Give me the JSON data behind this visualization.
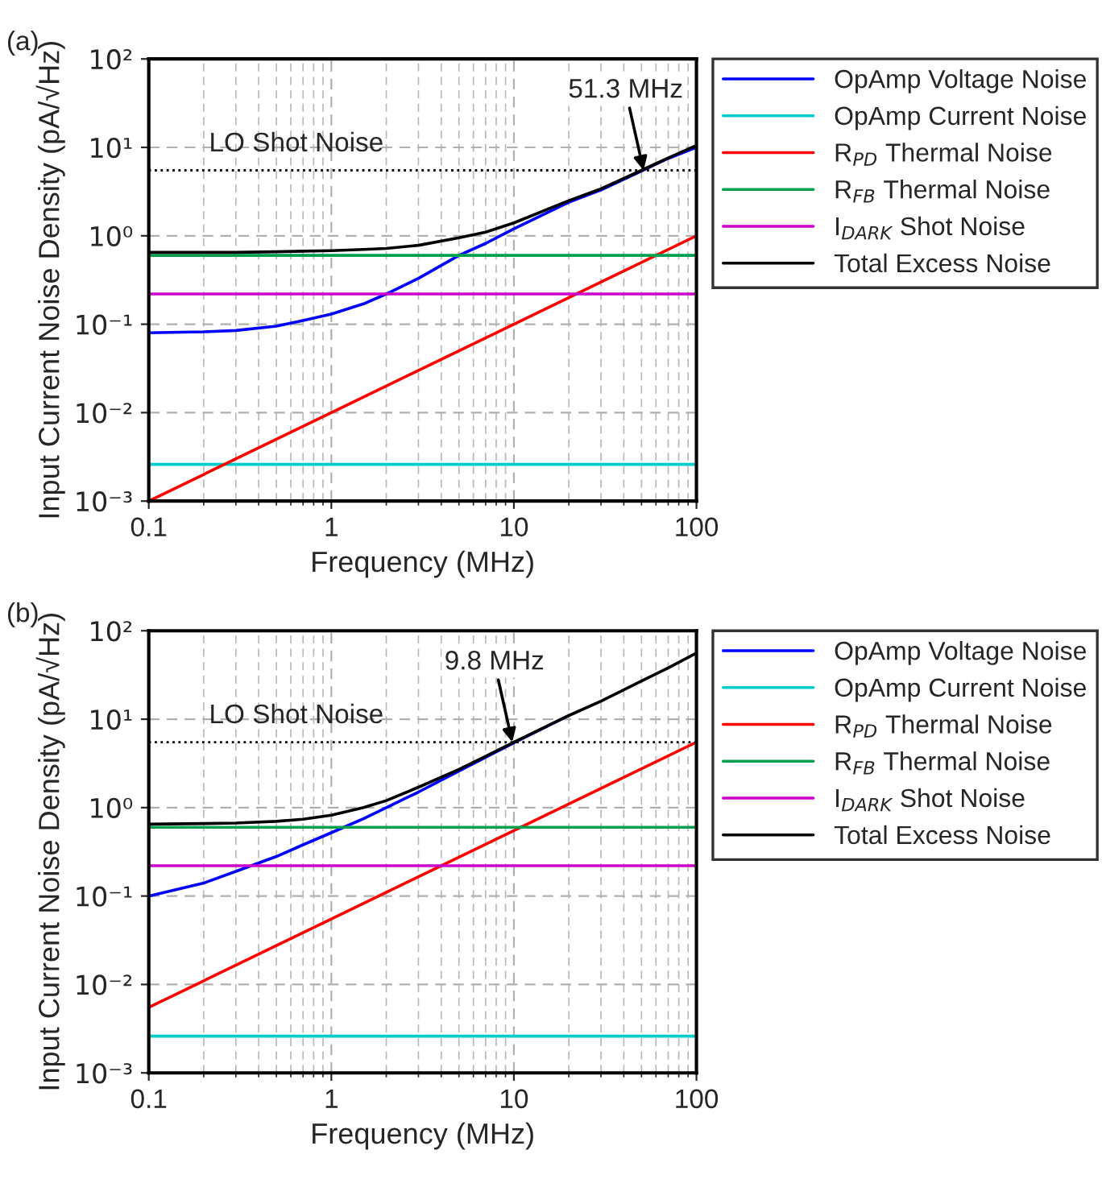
{
  "chart_data": [
    {
      "type": "line",
      "title": "(a)",
      "xlabel": "Frequency (MHz)",
      "ylabel": "Input Current Noise Density (pA/√Hz)",
      "log": "xy",
      "grid": true,
      "legend": "right",
      "line_style": "solid",
      "marker": "none",
      "xlim": [
        0.1,
        100
      ],
      "xticks": [
        0.1,
        1,
        10,
        100
      ],
      "ylim": [
        0.001,
        100
      ],
      "yticks": [
        {
          "value": 0.001,
          "label": "10⁻³"
        },
        {
          "value": 0.01,
          "label": "10⁻²"
        },
        {
          "value": 0.1,
          "label": "10⁻¹"
        },
        {
          "value": 1,
          "label": "10⁰"
        },
        {
          "value": 10,
          "label": "10¹"
        },
        {
          "value": 100,
          "label": "10²"
        }
      ],
      "series": [
        {
          "name": "OpAmp Voltage Noise",
          "color": "#0000ff",
          "x": [
            0.1,
            0.2,
            0.3,
            0.5,
            0.7,
            1,
            1.5,
            2,
            3,
            5,
            7,
            10,
            20,
            30,
            50,
            70,
            100
          ],
          "values": [
            0.08,
            0.082,
            0.085,
            0.095,
            0.11,
            0.13,
            0.17,
            0.22,
            0.33,
            0.6,
            0.82,
            1.2,
            2.4,
            3.3,
            5.4,
            7.5,
            10
          ]
        },
        {
          "name": "OpAmp Current Noise",
          "color": "#00cccc",
          "x": [
            0.1,
            100
          ],
          "values": [
            0.0026,
            0.0026
          ]
        },
        {
          "name": "R$_{PD}$ Thermal Noise",
          "color": "#ff0000",
          "x": [
            0.1,
            1,
            10,
            100
          ],
          "values": [
            0.001,
            0.01,
            0.1,
            1
          ]
        },
        {
          "name": "R$_{FB}$ Thermal Noise",
          "color": "#00a050",
          "x": [
            0.1,
            100
          ],
          "values": [
            0.6,
            0.6
          ]
        },
        {
          "name": "I$_{DARK}$ Shot Noise",
          "color": "#cc00cc",
          "x": [
            0.1,
            100
          ],
          "values": [
            0.22,
            0.22
          ]
        },
        {
          "name": "Total Excess Noise",
          "color": "#000000",
          "x": [
            0.1,
            0.2,
            0.3,
            0.5,
            0.7,
            1,
            1.5,
            2,
            3,
            5,
            7,
            10,
            20,
            30,
            50,
            70,
            100
          ],
          "values": [
            0.65,
            0.65,
            0.65,
            0.66,
            0.67,
            0.68,
            0.7,
            0.72,
            0.78,
            0.95,
            1.1,
            1.4,
            2.5,
            3.4,
            5.5,
            7.6,
            10.5
          ]
        }
      ],
      "ref_lines": [
        {
          "axis": "y",
          "value": 5.5,
          "label": "LO Shot Noise",
          "color": "#000000",
          "line_style": "dotted"
        }
      ],
      "annotations": [
        {
          "text": "51.3 MHz",
          "x": 51.3,
          "y": 5.5
        }
      ]
    },
    {
      "type": "line",
      "title": "(b)",
      "xlabel": "Frequency (MHz)",
      "ylabel": "Input Current Noise Density (pA/√Hz)",
      "log": "xy",
      "grid": true,
      "legend": "right",
      "line_style": "solid",
      "marker": "none",
      "xlim": [
        0.1,
        100
      ],
      "xticks": [
        0.1,
        1,
        10,
        100
      ],
      "ylim": [
        0.001,
        100
      ],
      "yticks": [
        {
          "value": 0.001,
          "label": "10⁻³"
        },
        {
          "value": 0.01,
          "label": "10⁻²"
        },
        {
          "value": 0.1,
          "label": "10⁻¹"
        },
        {
          "value": 1,
          "label": "10⁰"
        },
        {
          "value": 10,
          "label": "10¹"
        },
        {
          "value": 100,
          "label": "10²"
        }
      ],
      "series": [
        {
          "name": "OpAmp Voltage Noise",
          "color": "#0000ff",
          "x": [
            0.1,
            0.2,
            0.3,
            0.5,
            0.7,
            1,
            1.5,
            2,
            3,
            5,
            7,
            10,
            20
          ],
          "values": [
            0.1,
            0.14,
            0.19,
            0.28,
            0.38,
            0.52,
            0.75,
            1.0,
            1.5,
            2.6,
            3.7,
            5.4,
            11
          ]
        },
        {
          "name": "OpAmp Current Noise",
          "color": "#00cccc",
          "x": [
            0.1,
            100
          ],
          "values": [
            0.0026,
            0.0026
          ]
        },
        {
          "name": "R$_{PD}$ Thermal Noise",
          "color": "#ff0000",
          "x": [
            0.1,
            1,
            10,
            100
          ],
          "values": [
            0.0055,
            0.055,
            0.55,
            5.5
          ]
        },
        {
          "name": "R$_{FB}$ Thermal Noise",
          "color": "#00a050",
          "x": [
            0.1,
            100
          ],
          "values": [
            0.6,
            0.6
          ]
        },
        {
          "name": "I$_{DARK}$ Shot Noise",
          "color": "#cc00cc",
          "x": [
            0.1,
            100
          ],
          "values": [
            0.22,
            0.22
          ]
        },
        {
          "name": "Total Excess Noise",
          "color": "#000000",
          "x": [
            0.1,
            0.2,
            0.3,
            0.5,
            0.7,
            1,
            1.5,
            2,
            3,
            5,
            7,
            10,
            20,
            30,
            50,
            70,
            100
          ],
          "values": [
            0.65,
            0.66,
            0.67,
            0.7,
            0.74,
            0.82,
            1.0,
            1.2,
            1.7,
            2.7,
            3.8,
            5.5,
            11,
            16,
            27,
            38,
            56
          ]
        }
      ],
      "ref_lines": [
        {
          "axis": "y",
          "value": 5.5,
          "label": "LO Shot Noise",
          "color": "#000000",
          "line_style": "dotted"
        }
      ],
      "annotations": [
        {
          "text": "9.8 MHz",
          "x": 9.8,
          "y": 5.5
        }
      ]
    }
  ]
}
